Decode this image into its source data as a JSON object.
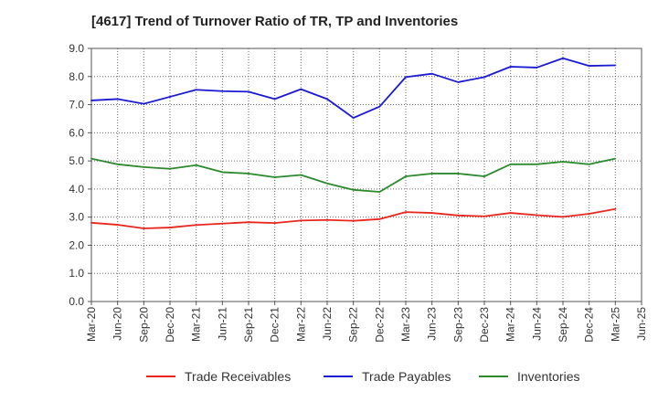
{
  "chart_data": {
    "type": "line",
    "title": "[4617]  Trend of Turnover Ratio of TR, TP and Inventories",
    "xlabel": "",
    "ylabel": "",
    "ylim": [
      0,
      9
    ],
    "yticks": [
      "0.0",
      "1.0",
      "2.0",
      "3.0",
      "4.0",
      "5.0",
      "6.0",
      "7.0",
      "8.0",
      "9.0"
    ],
    "x": [
      "Mar-20",
      "Jun-20",
      "Sep-20",
      "Dec-20",
      "Mar-21",
      "Jun-21",
      "Sep-21",
      "Dec-21",
      "Mar-22",
      "Jun-22",
      "Sep-22",
      "Dec-22",
      "Mar-23",
      "Jun-23",
      "Sep-23",
      "Dec-23",
      "Mar-24",
      "Jun-24",
      "Sep-24",
      "Dec-24",
      "Mar-25",
      "Jun-25"
    ],
    "grid": true,
    "legend": "bottom",
    "series": [
      {
        "name": "Trade Receivables",
        "color": "#e8261e",
        "values": [
          2.8,
          2.73,
          2.6,
          2.63,
          2.72,
          2.77,
          2.82,
          2.79,
          2.88,
          2.9,
          2.87,
          2.93,
          3.18,
          3.15,
          3.06,
          3.03,
          3.15,
          3.07,
          3.01,
          3.12,
          3.29,
          null
        ]
      },
      {
        "name": "Trade Payables",
        "color": "#1a1ad4",
        "values": [
          7.15,
          7.2,
          7.03,
          7.28,
          7.53,
          7.48,
          7.46,
          7.2,
          7.55,
          7.2,
          6.53,
          6.93,
          7.98,
          8.1,
          7.8,
          7.98,
          8.35,
          8.32,
          8.65,
          8.38,
          8.4,
          null
        ]
      },
      {
        "name": "Inventories",
        "color": "#2b8a2b",
        "values": [
          5.08,
          4.88,
          4.78,
          4.72,
          4.85,
          4.6,
          4.55,
          4.42,
          4.5,
          4.2,
          3.97,
          3.9,
          4.45,
          4.55,
          4.55,
          4.45,
          4.88,
          4.88,
          4.97,
          4.88,
          5.08,
          null
        ]
      }
    ]
  }
}
